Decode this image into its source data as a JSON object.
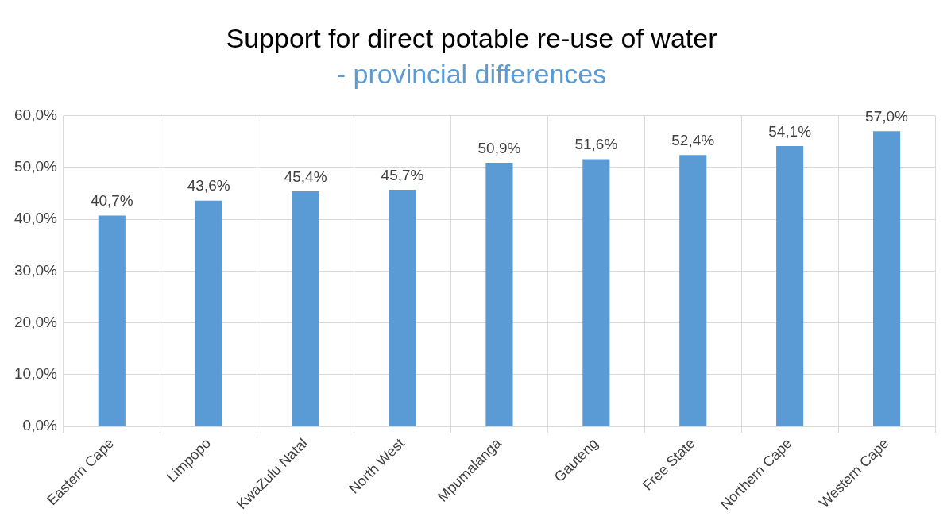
{
  "chart_data": {
    "type": "bar",
    "title": "Support for direct potable re-use of water",
    "subtitle": "- provincial differences",
    "categories": [
      "Eastern Cape",
      "Limpopo",
      "KwaZulu Natal",
      "North West",
      "Mpumalanga",
      "Gauteng",
      "Free State",
      "Northern Cape",
      "Western Cape"
    ],
    "values": [
      40.7,
      43.6,
      45.4,
      45.7,
      50.9,
      51.6,
      52.4,
      54.1,
      57.0
    ],
    "value_labels": [
      "40,7%",
      "43,6%",
      "45,4%",
      "45,7%",
      "50,9%",
      "51,6%",
      "52,4%",
      "54,1%",
      "57,0%"
    ],
    "color": "#5b9bd5",
    "ylim": [
      0,
      60
    ],
    "yticks": [
      {
        "value": 0,
        "label": "0,0%"
      },
      {
        "value": 10,
        "label": "10,0%"
      },
      {
        "value": 20,
        "label": "20,0%"
      },
      {
        "value": 30,
        "label": "30,0%"
      },
      {
        "value": 40,
        "label": "40,0%"
      },
      {
        "value": 50,
        "label": "50,0%"
      },
      {
        "value": 60,
        "label": "60,0%"
      }
    ],
    "grid": true,
    "legend": false
  }
}
